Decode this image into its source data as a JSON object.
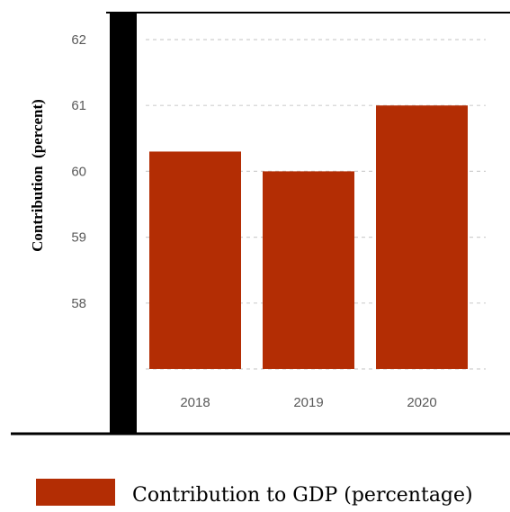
{
  "chart_data": {
    "type": "bar",
    "categories": [
      "2018",
      "2019",
      "2020"
    ],
    "series": [
      {
        "name": "Contribution to GDP (percentage)",
        "values": [
          60.3,
          60.0,
          61.0
        ]
      }
    ],
    "ylabel": "Contribution  (percent)",
    "xlabel": "",
    "ylim": [
      57,
      62
    ],
    "yticks": [
      "58",
      "59",
      "60",
      "61",
      "62"
    ],
    "grid": true,
    "legend_position": "bottom",
    "bar_color": "#b32d04"
  }
}
